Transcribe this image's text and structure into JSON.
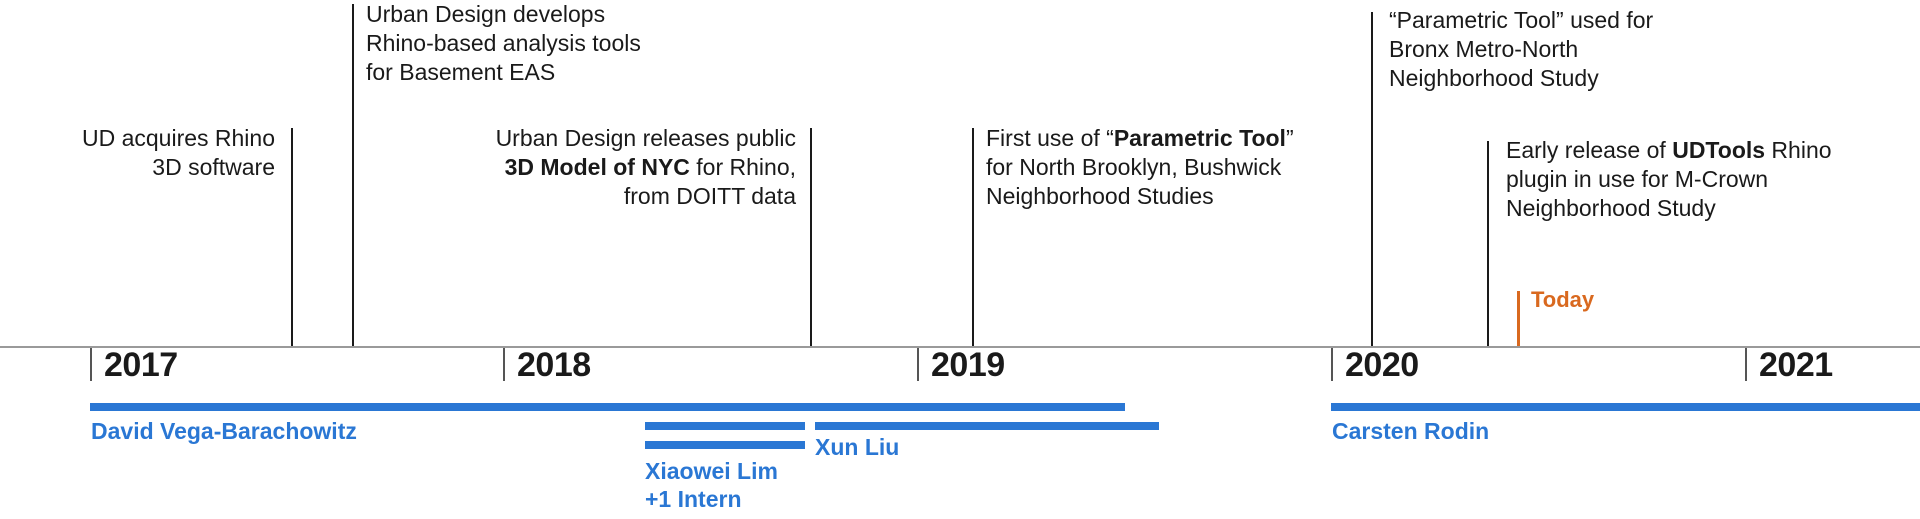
{
  "timeline": {
    "years": [
      "2017",
      "2018",
      "2019",
      "2020",
      "2021"
    ],
    "today_label": "Today",
    "events": [
      {
        "id": "rhino",
        "lines": [
          "UD acquires Rhino",
          "3D software"
        ]
      },
      {
        "id": "tools",
        "lines": [
          "Urban Design develops",
          "Rhino-based analysis tools",
          "for Basement EAS"
        ]
      },
      {
        "id": "model",
        "l1": "Urban Design releases public",
        "l2_bold": "3D Model of NYC",
        "l2_rest": " for Rhino,",
        "l3": "from DOITT data"
      },
      {
        "id": "param1",
        "l1_pre": "First use of “",
        "l1_bold": "Parametric Tool",
        "l1_post": "”",
        "l2": "for North Brooklyn, Bushwick",
        "l3": "Neighborhood Studies"
      },
      {
        "id": "param2",
        "lines": [
          "“Parametric Tool” used for",
          "Bronx Metro-North",
          "Neighborhood Study"
        ]
      },
      {
        "id": "udtools",
        "l1_pre": "Early release of ",
        "l1_bold": "UDTools",
        "l1_post": " Rhino",
        "l2": "plugin in use for M-Crown",
        "l3": "Neighborhood Study"
      }
    ],
    "people": [
      {
        "name": "David Vega-Barachowitz"
      },
      {
        "name": "Xiaowei Lim",
        "name2": "+1 Intern"
      },
      {
        "name": "Xun Liu"
      },
      {
        "name": "Carsten Rodin"
      }
    ],
    "colors": {
      "staff": "#2a77d4",
      "today": "#d9691f",
      "text": "#1a1a1a"
    }
  }
}
